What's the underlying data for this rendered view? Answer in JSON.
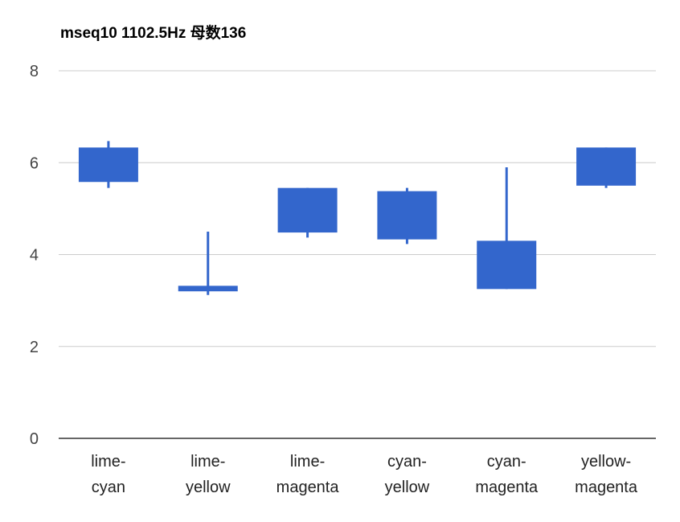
{
  "chart_data": {
    "type": "candlestick",
    "title": "mseq10 1102.5Hz 母数136",
    "xlabel": "",
    "ylabel": "",
    "ylim": [
      0,
      8
    ],
    "yticks": [
      0,
      2,
      4,
      6,
      8
    ],
    "grid": true,
    "legend": "none",
    "colors": {
      "candle": "#3366cc",
      "grid": "#cccccc",
      "axis": "#333333",
      "tick_text": "#444444"
    },
    "categories": [
      [
        "lime-",
        "cyan"
      ],
      [
        "lime-",
        "yellow"
      ],
      [
        "lime-",
        "magenta"
      ],
      [
        "cyan-",
        "yellow"
      ],
      [
        "cyan-",
        "magenta"
      ],
      [
        "yellow-",
        "magenta"
      ]
    ],
    "candles": [
      {
        "low": 5.45,
        "box_low": 5.58,
        "box_high": 6.33,
        "high": 6.47
      },
      {
        "low": 3.12,
        "box_low": 3.2,
        "box_high": 3.32,
        "high": 4.5
      },
      {
        "low": 4.37,
        "box_low": 4.48,
        "box_high": 5.45,
        "high": 5.45
      },
      {
        "low": 4.23,
        "box_low": 4.33,
        "box_high": 5.38,
        "high": 5.45
      },
      {
        "low": 3.25,
        "box_low": 3.25,
        "box_high": 4.3,
        "high": 5.9
      },
      {
        "low": 5.45,
        "box_low": 5.5,
        "box_high": 6.33,
        "high": 6.33
      }
    ]
  }
}
